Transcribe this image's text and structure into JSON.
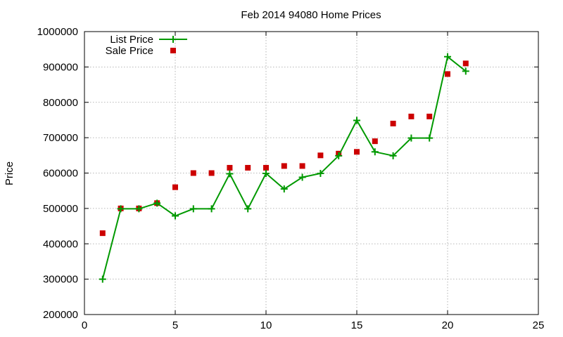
{
  "chart_data": {
    "type": "line",
    "title": "Feb 2014 94080 Home Prices",
    "xlabel": "",
    "ylabel": "Price",
    "xlim": [
      0,
      25
    ],
    "ylim": [
      200000,
      1000000
    ],
    "x_ticks": [
      0,
      5,
      10,
      15,
      20,
      25
    ],
    "y_ticks": [
      200000,
      300000,
      400000,
      500000,
      600000,
      700000,
      800000,
      900000,
      1000000
    ],
    "grid": true,
    "legend_position": "top-left",
    "series": [
      {
        "name": "List Price",
        "style": "line-with-plus-markers",
        "color": "#009900",
        "x": [
          1,
          2,
          3,
          4,
          5,
          6,
          7,
          8,
          9,
          10,
          11,
          12,
          13,
          14,
          15,
          16,
          17,
          18,
          19,
          20,
          21
        ],
        "values": [
          300000,
          499000,
          499000,
          515000,
          479000,
          499000,
          499000,
          598000,
          499000,
          599000,
          555000,
          588000,
          599000,
          649000,
          749000,
          660000,
          649000,
          699000,
          699000,
          929000,
          888000
        ]
      },
      {
        "name": "Sale Price",
        "style": "square-markers",
        "color": "#cc0000",
        "x": [
          1,
          2,
          3,
          4,
          5,
          6,
          7,
          8,
          9,
          10,
          11,
          12,
          13,
          14,
          15,
          16,
          17,
          18,
          19,
          20,
          21
        ],
        "values": [
          430000,
          500000,
          500000,
          515000,
          560000,
          600000,
          600000,
          615000,
          615000,
          615000,
          620000,
          620000,
          650000,
          655000,
          660000,
          690000,
          740000,
          760000,
          760000,
          880000,
          910000
        ]
      }
    ]
  }
}
